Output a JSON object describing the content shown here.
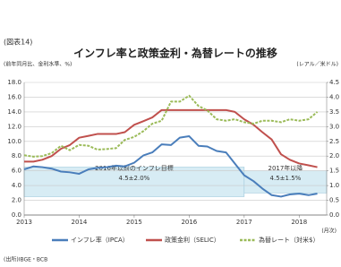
{
  "chart_data": {
    "type": "line",
    "figure_label": "(図表14)",
    "title": "インフレ率と政策金利・為替レートの推移",
    "ylabel": "(前年同月比、金利水準、%)",
    "y2label": "(レアル／米ドル)",
    "xlabel": "(月次)",
    "source": "(出所)IBGE・BCB",
    "x": [
      2013.0,
      2013.17,
      2013.33,
      2013.5,
      2013.67,
      2013.83,
      2014.0,
      2014.17,
      2014.33,
      2014.5,
      2014.67,
      2014.83,
      2015.0,
      2015.17,
      2015.33,
      2015.5,
      2015.67,
      2015.83,
      2016.0,
      2016.17,
      2016.33,
      2016.5,
      2016.67,
      2016.83,
      2017.0,
      2017.17,
      2017.33,
      2017.5,
      2017.67,
      2017.83,
      2018.0,
      2018.17,
      2018.33
    ],
    "series": [
      {
        "name": "インフレ率（IPCA）",
        "color": "#4a7ebb",
        "dash": false,
        "values": [
          6.2,
          6.6,
          6.5,
          6.3,
          5.9,
          5.8,
          5.6,
          6.2,
          6.4,
          6.5,
          6.7,
          6.6,
          7.1,
          8.1,
          8.5,
          9.6,
          9.5,
          10.5,
          10.7,
          9.4,
          9.3,
          8.7,
          8.5,
          7.0,
          5.4,
          4.6,
          3.6,
          2.7,
          2.5,
          2.8,
          2.9,
          2.7,
          2.9
        ]
      },
      {
        "name": "政策金利（SELIC）",
        "color": "#c0504d",
        "dash": false,
        "values": [
          7.25,
          7.25,
          7.5,
          8.0,
          9.0,
          9.5,
          10.5,
          10.75,
          11.0,
          11.0,
          11.0,
          11.25,
          12.25,
          12.75,
          13.25,
          14.25,
          14.25,
          14.25,
          14.25,
          14.25,
          14.25,
          14.25,
          14.25,
          14.0,
          13.0,
          12.25,
          11.25,
          10.25,
          8.25,
          7.5,
          7.0,
          6.75,
          6.5
        ]
      },
      {
        "name": "為替レート（対米$）",
        "color": "#9bbb59",
        "dash": true,
        "axis": "y2",
        "values": [
          2.03,
          1.98,
          2.0,
          2.1,
          2.35,
          2.2,
          2.38,
          2.35,
          2.22,
          2.24,
          2.27,
          2.55,
          2.65,
          2.85,
          3.1,
          3.2,
          3.85,
          3.85,
          4.05,
          3.7,
          3.55,
          3.25,
          3.2,
          3.25,
          3.15,
          3.1,
          3.2,
          3.2,
          3.15,
          3.25,
          3.2,
          3.25,
          3.5
        ]
      }
    ],
    "xlim": [
      2013,
      2018.5
    ],
    "xticks": [
      2013,
      2014,
      2015,
      2016,
      2017,
      2018
    ],
    "ylim": [
      0,
      18
    ],
    "yticks": [
      {
        "value": 0,
        "label": "0.0"
      },
      {
        "value": 2,
        "label": "2.0"
      },
      {
        "value": 4,
        "label": "4.0"
      },
      {
        "value": 6,
        "label": "6.0"
      },
      {
        "value": 8,
        "label": "8.0"
      },
      {
        "value": 10,
        "label": "10.0"
      },
      {
        "value": 12,
        "label": "12.0"
      },
      {
        "value": 14,
        "label": "14.0"
      },
      {
        "value": 16,
        "label": "16.0"
      },
      {
        "value": 18,
        "label": "18.0"
      }
    ],
    "y2lim": [
      0,
      4.5
    ],
    "y2ticks": [
      {
        "value": 0,
        "label": "0.0"
      },
      {
        "value": 0.5,
        "label": "0.5"
      },
      {
        "value": 1,
        "label": "1.0"
      },
      {
        "value": 1.5,
        "label": "1.5"
      },
      {
        "value": 2,
        "label": "2.0"
      },
      {
        "value": 2.5,
        "label": "2.5"
      },
      {
        "value": 3,
        "label": "3.0"
      },
      {
        "value": 3.5,
        "label": "3.5"
      },
      {
        "value": 4,
        "label": "4.0"
      },
      {
        "value": 4.5,
        "label": "4.5"
      }
    ],
    "grid": true,
    "target_bands": [
      {
        "xlim": [
          2013,
          2017
        ],
        "ylim": [
          2.5,
          6.5
        ],
        "label": "2016年以前のインフレ目標",
        "range_label": "4.5±2.0%"
      },
      {
        "xlim": [
          2017,
          2018.5
        ],
        "ylim": [
          3.0,
          6.0
        ],
        "label": "2017年以降",
        "range_label": "4.5±1.5%"
      }
    ],
    "band_color": "#d7ecf4"
  }
}
